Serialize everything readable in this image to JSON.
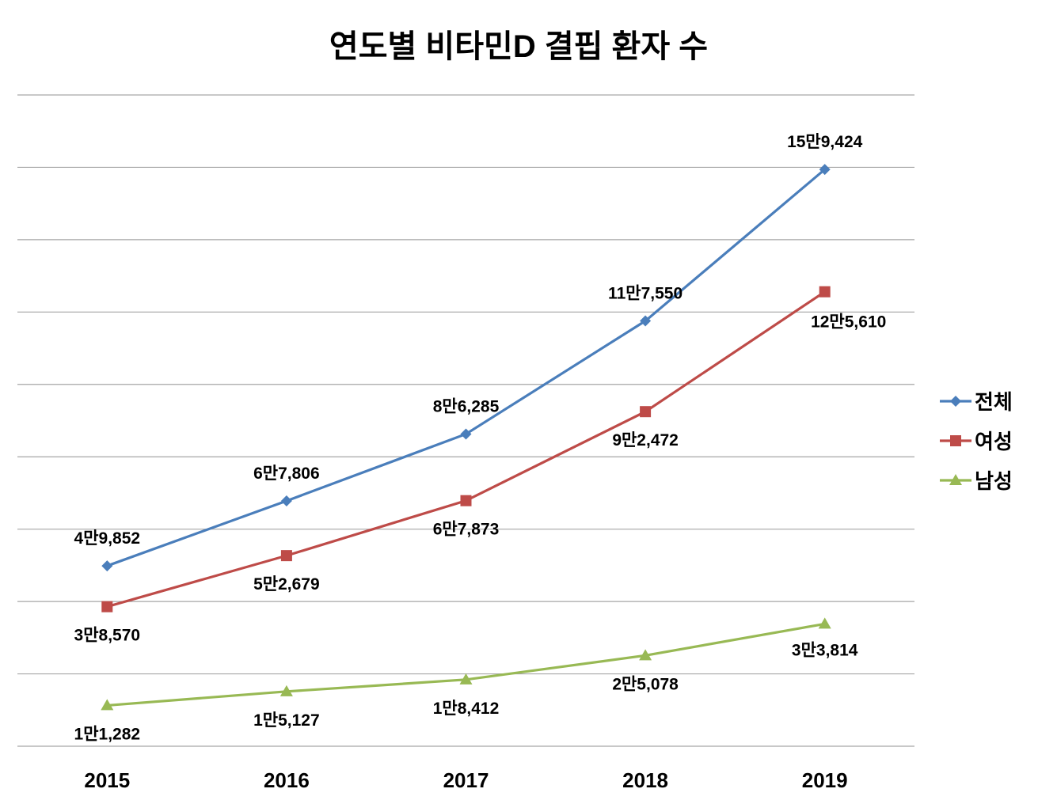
{
  "chart_data": {
    "type": "line",
    "title": "연도별 비타민D 결핍 환자 수",
    "categories": [
      "2015",
      "2016",
      "2017",
      "2018",
      "2019"
    ],
    "ylim": [
      0,
      180000
    ],
    "ytick_step": 20000,
    "grid": true,
    "y_tick_labels_shown": false,
    "legend": "right",
    "series": [
      {
        "name": "전체",
        "color": "#4a7ebb",
        "marker": "diamond",
        "values": [
          49852,
          67806,
          86285,
          117550,
          159424
        ],
        "labels": [
          "4만9,852",
          "6만7,806",
          "8만6,285",
          "11만7,550",
          "15만9,424"
        ],
        "label_pos": "above"
      },
      {
        "name": "여성",
        "color": "#be4b48",
        "marker": "square",
        "values": [
          38570,
          52679,
          67873,
          92472,
          125610
        ],
        "labels": [
          "3만8,570",
          "5만2,679",
          "6만7,873",
          "9만2,472",
          "12만5,610"
        ],
        "label_pos": "below"
      },
      {
        "name": "남성",
        "color": "#98b954",
        "marker": "triangle",
        "values": [
          11282,
          15127,
          18412,
          25078,
          33814
        ],
        "labels": [
          "1만1,282",
          "1만5,127",
          "1만8,412",
          "2만5,078",
          "3만3,814"
        ],
        "label_pos": "below"
      }
    ]
  }
}
